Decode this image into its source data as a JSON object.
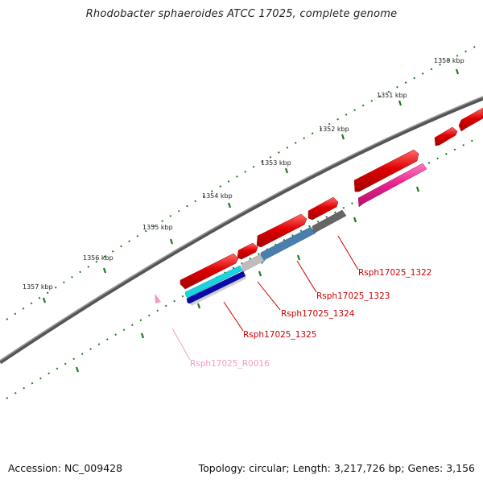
{
  "title": "Rhodobacter sphaeroides ATCC 17025, complete genome",
  "footer": {
    "accession": "Accession: NC_009428",
    "summary": "Topology: circular; Length: 3,217,726 bp; Genes: 3,156"
  },
  "scale_labels": [
    "1350 kbp",
    "1351 kbp",
    "1352 kbp",
    "1353 kbp",
    "1354 kbp",
    "1355 kbp",
    "1356 kbp",
    "1357 kbp"
  ],
  "gene_labels": [
    {
      "id": "gene-label-1322",
      "text": "Rsph17025_1322",
      "color": "#cc0000"
    },
    {
      "id": "gene-label-1323",
      "text": "Rsph17025_1323",
      "color": "#cc0000"
    },
    {
      "id": "gene-label-1324",
      "text": "Rsph17025_1324",
      "color": "#cc0000"
    },
    {
      "id": "gene-label-1325",
      "text": "Rsph17025_1325",
      "color": "#cc0000"
    },
    {
      "id": "gene-label-R0016",
      "text": "Rsph17025_R0016",
      "color": "#f39ac3"
    }
  ],
  "colors": {
    "backbone": "#777777",
    "tick": "#1f7a1f",
    "gene_red": "#e00000",
    "gene_magenta": "#e81e8c",
    "gene_gray": "#666666",
    "gene_steelblue": "#4a7fad",
    "gene_lightgray": "#bdbdbd",
    "gene_cyan": "#19d3e0",
    "gene_navy": "#0a0aa8",
    "gene_pink": "#f39ac3"
  }
}
